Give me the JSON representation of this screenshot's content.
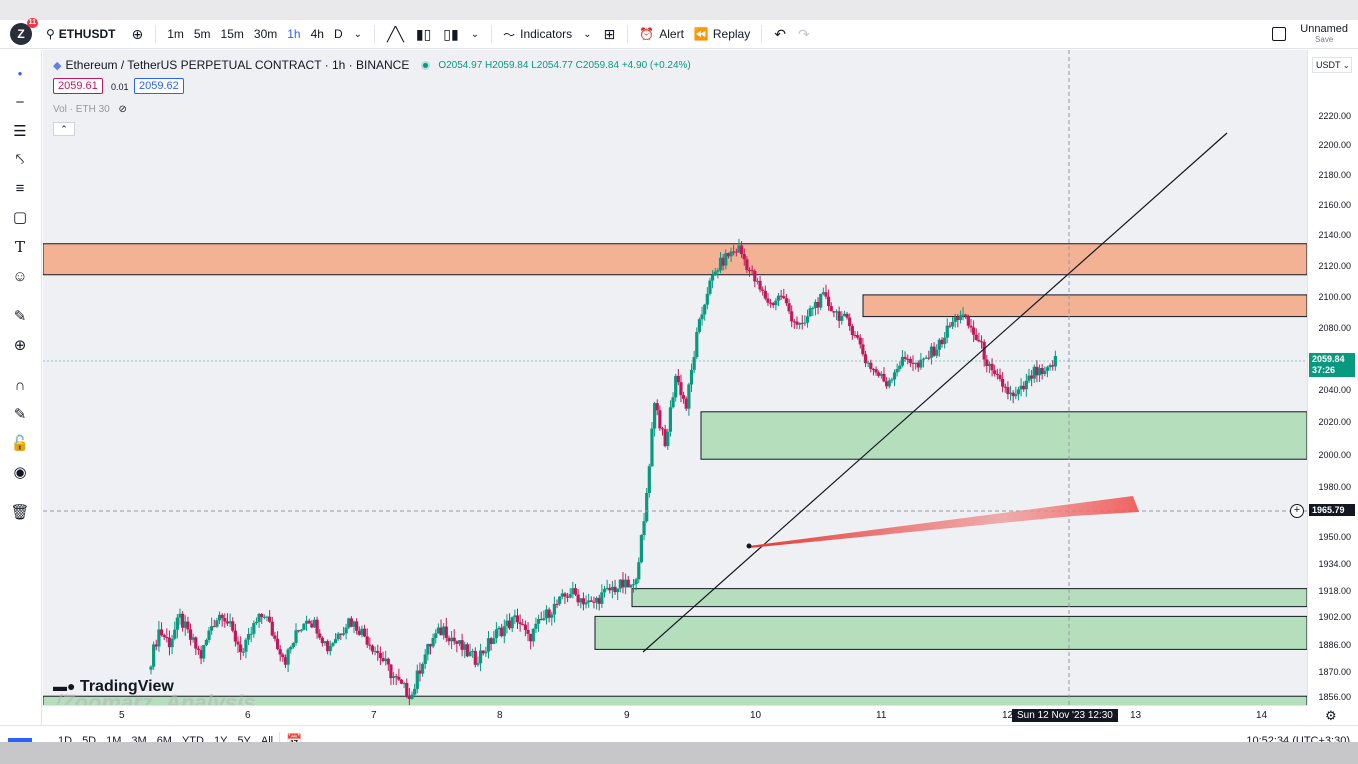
{
  "toolbar": {
    "logo_letter": "Z",
    "logo_badge": "11",
    "symbol": "ETHUSDT",
    "intervals": [
      "1m",
      "5m",
      "15m",
      "30m",
      "1h",
      "4h",
      "D"
    ],
    "active_interval": "1h",
    "indicators_label": "Indicators",
    "alert_label": "Alert",
    "replay_label": "Replay",
    "layout_name": "Unnamed",
    "layout_sub": "Save"
  },
  "legend": {
    "title": "Ethereum / TetherUS PERPETUAL CONTRACT · 1h · BINANCE",
    "ohlc": "O2054.97  H2059.84  L2054.77  C2059.84  +4.90 (+0.24%)",
    "bid": "2059.61",
    "spread": "0.01",
    "ask": "2059.62",
    "volume": "Vol · ETH  30"
  },
  "price_scale": {
    "currency": "USDT",
    "ticks": [
      "2220.00",
      "2200.00",
      "2180.00",
      "2160.00",
      "2140.00",
      "2120.00",
      "2100.00",
      "2080.00",
      "2060.00",
      "2040.00",
      "2020.00",
      "2000.00",
      "1980.00",
      "1965.79",
      "1950.00",
      "1934.00",
      "1918.00",
      "1902.00",
      "1886.00",
      "1870.00",
      "1856.00"
    ],
    "last_price": "2059.84",
    "countdown": "37:26",
    "crosshair_price": "1965.79"
  },
  "time_scale": {
    "labels": [
      "5",
      "6",
      "7",
      "8",
      "9",
      "10",
      "11",
      "12",
      "13",
      "14"
    ],
    "crosshair_time": "Sun 12 Nov '23   12:30"
  },
  "bottom": {
    "ranges": [
      "1D",
      "5D",
      "1M",
      "3M",
      "6M",
      "YTD",
      "1Y",
      "5Y",
      "All"
    ],
    "clock": "10:52:34 (UTC+3:30)"
  },
  "branding": {
    "tradingview": "TradingView",
    "watermark": "/Zoomarz_Analysis"
  },
  "colors": {
    "up": "#089981",
    "down": "#c2185b",
    "supply_zone": "#f2b293",
    "demand_zone": "#b5dfbc"
  },
  "chart_data": {
    "type": "candlestick",
    "title": "Ethereum / TetherUS PERPETUAL CONTRACT · 1h · BINANCE",
    "ylim": [
      1850,
      2230
    ],
    "x_ticks": [
      "5",
      "6",
      "7",
      "8",
      "9",
      "10",
      "11",
      "12",
      "13",
      "14"
    ],
    "zones": [
      {
        "kind": "supply",
        "low": 2115,
        "high": 2135
      },
      {
        "kind": "supply",
        "low": 2088,
        "high": 2102
      },
      {
        "kind": "demand",
        "low": 1998,
        "high": 2027
      },
      {
        "kind": "demand",
        "low": 1909,
        "high": 1920
      },
      {
        "kind": "demand",
        "low": 1884,
        "high": 1903
      },
      {
        "kind": "demand",
        "low": 1850,
        "high": 1857
      }
    ],
    "close_path": [
      1872,
      1895,
      1888,
      1902,
      1890,
      1880,
      1898,
      1906,
      1893,
      1882,
      1897,
      1905,
      1890,
      1878,
      1892,
      1903,
      1897,
      1885,
      1893,
      1901,
      1896,
      1888,
      1880,
      1870,
      1862,
      1858,
      1878,
      1890,
      1896,
      1889,
      1883,
      1878,
      1885,
      1893,
      1898,
      1902,
      1890,
      1898,
      1906,
      1912,
      1918,
      1914,
      1910,
      1916,
      1920,
      1922,
      1920,
      1958,
      2035,
      2005,
      2050,
      2030,
      2075,
      2105,
      2120,
      2128,
      2132,
      2118,
      2105,
      2096,
      2102,
      2088,
      2080,
      2095,
      2100,
      2092,
      2086,
      2078,
      2060,
      2052,
      2045,
      2056,
      2062,
      2055,
      2063,
      2070,
      2082,
      2090,
      2080,
      2068,
      2050,
      2044,
      2035,
      2042,
      2052,
      2050,
      2059.84
    ]
  }
}
